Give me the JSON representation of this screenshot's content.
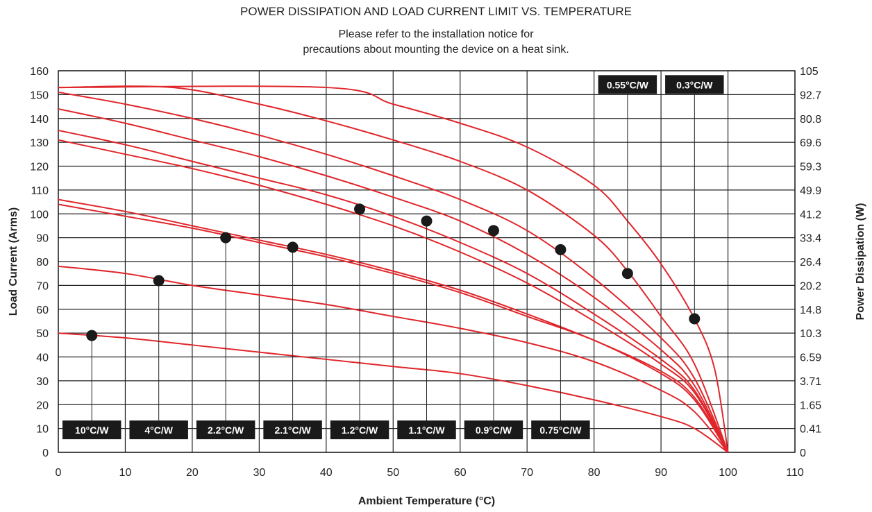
{
  "chart_data": {
    "type": "line",
    "title": "POWER DISSIPATION AND LOAD CURRENT LIMIT VS. TEMPERATURE",
    "subtitle_lines": [
      "Please refer to the installation notice for",
      "precautions about mounting the device on a heat sink."
    ],
    "xlabel": "Ambient Temperature (°C)",
    "ylabel": "Load Current (Arms)",
    "y2label": "Power Dissipation (W)",
    "xlim": [
      0,
      110
    ],
    "ylim": [
      0,
      160
    ],
    "x_ticks": [
      "0",
      "10",
      "20",
      "30",
      "40",
      "50",
      "60",
      "70",
      "80",
      "90",
      "100",
      "110"
    ],
    "y_ticks": [
      "0",
      "10",
      "20",
      "30",
      "40",
      "50",
      "60",
      "70",
      "80",
      "90",
      "100",
      "110",
      "120",
      "130",
      "140",
      "150",
      "160"
    ],
    "y2_ticks": [
      "0",
      "0.41",
      "1.65",
      "3.71",
      "6.59",
      "10.3",
      "14.8",
      "20.2",
      "26.4",
      "33.4",
      "41.2",
      "49.9",
      "59.3",
      "69.6",
      "80.8",
      "92.7",
      "105"
    ],
    "grid": true,
    "series": [
      {
        "name": "10°C/W",
        "marker": {
          "x": 5,
          "y": 49
        },
        "label_pos": "bottom",
        "points": [
          [
            0,
            50
          ],
          [
            10,
            48
          ],
          [
            20,
            45
          ],
          [
            30,
            42
          ],
          [
            40,
            39
          ],
          [
            50,
            36
          ],
          [
            60,
            33
          ],
          [
            70,
            28
          ],
          [
            80,
            22
          ],
          [
            90,
            15
          ],
          [
            95,
            10
          ],
          [
            100,
            0
          ]
        ]
      },
      {
        "name": "4°C/W",
        "marker": {
          "x": 15,
          "y": 72
        },
        "label_pos": "bottom",
        "points": [
          [
            0,
            78
          ],
          [
            10,
            75
          ],
          [
            20,
            70
          ],
          [
            30,
            66
          ],
          [
            40,
            62
          ],
          [
            50,
            57
          ],
          [
            60,
            52
          ],
          [
            70,
            46
          ],
          [
            80,
            38
          ],
          [
            90,
            26
          ],
          [
            95,
            17
          ],
          [
            100,
            0
          ]
        ]
      },
      {
        "name": "2.2°C/W",
        "marker": {
          "x": 25,
          "y": 90
        },
        "label_pos": "bottom",
        "points": [
          [
            0,
            104
          ],
          [
            10,
            99
          ],
          [
            20,
            94
          ],
          [
            30,
            88
          ],
          [
            40,
            82
          ],
          [
            50,
            75
          ],
          [
            60,
            67
          ],
          [
            70,
            57
          ],
          [
            80,
            47
          ],
          [
            90,
            33
          ],
          [
            95,
            22
          ],
          [
            100,
            0
          ]
        ]
      },
      {
        "name": "2.1°C/W",
        "marker": {
          "x": 35,
          "y": 86
        },
        "label_pos": "bottom",
        "points": [
          [
            0,
            106
          ],
          [
            10,
            101
          ],
          [
            20,
            95
          ],
          [
            30,
            89
          ],
          [
            40,
            83
          ],
          [
            50,
            76
          ],
          [
            60,
            68
          ],
          [
            70,
            58
          ],
          [
            80,
            47
          ],
          [
            90,
            34
          ],
          [
            95,
            23
          ],
          [
            100,
            0
          ]
        ]
      },
      {
        "name": "1.2°C/W",
        "marker": {
          "x": 45,
          "y": 102
        },
        "label_pos": "bottom",
        "points": [
          [
            0,
            131
          ],
          [
            10,
            125
          ],
          [
            20,
            119
          ],
          [
            30,
            112
          ],
          [
            40,
            104
          ],
          [
            50,
            95
          ],
          [
            60,
            84
          ],
          [
            70,
            71
          ],
          [
            80,
            55
          ],
          [
            90,
            37
          ],
          [
            95,
            25
          ],
          [
            100,
            0
          ]
        ]
      },
      {
        "name": "1.1°C/W",
        "marker": {
          "x": 55,
          "y": 97
        },
        "label_pos": "bottom",
        "points": [
          [
            0,
            135
          ],
          [
            10,
            129
          ],
          [
            20,
            122
          ],
          [
            30,
            115
          ],
          [
            40,
            108
          ],
          [
            50,
            99
          ],
          [
            60,
            88
          ],
          [
            70,
            75
          ],
          [
            80,
            58
          ],
          [
            90,
            39
          ],
          [
            95,
            26
          ],
          [
            100,
            0
          ]
        ]
      },
      {
        "name": "0.9°C/W",
        "marker": {
          "x": 65,
          "y": 93
        },
        "label_pos": "bottom",
        "points": [
          [
            0,
            144
          ],
          [
            10,
            138
          ],
          [
            20,
            131
          ],
          [
            30,
            124
          ],
          [
            40,
            116
          ],
          [
            50,
            107
          ],
          [
            60,
            97
          ],
          [
            70,
            83
          ],
          [
            80,
            65
          ],
          [
            90,
            43
          ],
          [
            95,
            28
          ],
          [
            100,
            0
          ]
        ]
      },
      {
        "name": "0.75°C/W",
        "marker": {
          "x": 75,
          "y": 85
        },
        "label_pos": "bottom",
        "points": [
          [
            0,
            151
          ],
          [
            10,
            146
          ],
          [
            20,
            140
          ],
          [
            30,
            133
          ],
          [
            40,
            125
          ],
          [
            50,
            116
          ],
          [
            60,
            106
          ],
          [
            70,
            93
          ],
          [
            80,
            73
          ],
          [
            90,
            48
          ],
          [
            95,
            31
          ],
          [
            100,
            0
          ]
        ]
      },
      {
        "name": "0.55°C/W",
        "marker": {
          "x": 85,
          "y": 75
        },
        "label_pos": "top",
        "points": [
          [
            0,
            153
          ],
          [
            17,
            153
          ],
          [
            30,
            146
          ],
          [
            40,
            139
          ],
          [
            50,
            131
          ],
          [
            60,
            122
          ],
          [
            70,
            110
          ],
          [
            80,
            91
          ],
          [
            85,
            76
          ],
          [
            90,
            57
          ],
          [
            95,
            37
          ],
          [
            100,
            0
          ]
        ]
      },
      {
        "name": "0.3°C/W",
        "marker": {
          "x": 95,
          "y": 56
        },
        "label_pos": "top",
        "points": [
          [
            0,
            153
          ],
          [
            40,
            153
          ],
          [
            50,
            146
          ],
          [
            60,
            138
          ],
          [
            70,
            128
          ],
          [
            80,
            112
          ],
          [
            85,
            97
          ],
          [
            90,
            79
          ],
          [
            95,
            56
          ],
          [
            98,
            35
          ],
          [
            100,
            0
          ]
        ]
      }
    ]
  },
  "colors": {
    "curve": "#e0262b",
    "grid": "#222222",
    "badge": "#1a1a1a",
    "badge_text": "#ffffff"
  }
}
